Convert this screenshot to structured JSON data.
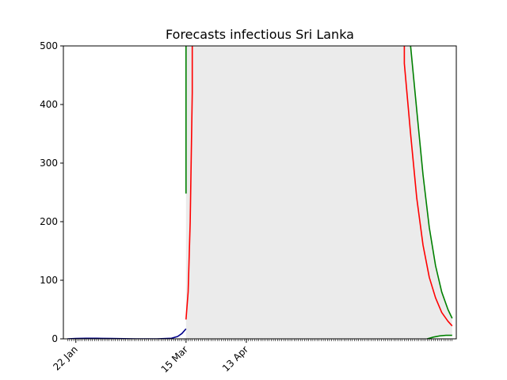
{
  "chart_data": {
    "type": "line",
    "title": "Forecasts infectious Sri Lanka",
    "xlabel": "",
    "ylabel": "",
    "x_axis": {
      "type": "date",
      "start": "2020-01-16",
      "end": "2020-07-23",
      "tick_labels": [
        {
          "date": "2020-01-22",
          "label": "22 Jan"
        },
        {
          "date": "2020-03-15",
          "label": "15 Mar"
        },
        {
          "date": "2020-04-13",
          "label": "13 Apr"
        }
      ],
      "minor_ticks": "daily"
    },
    "ylim": [
      0,
      500
    ],
    "y_ticks": [
      0,
      100,
      200,
      300,
      400,
      500
    ],
    "grid": false,
    "legend": "none",
    "series": [
      {
        "color": "#00008b",
        "style": "observed",
        "points": [
          [
            "2020-01-18",
            0
          ],
          [
            "2020-01-22",
            0.5
          ],
          [
            "2020-01-27",
            1
          ],
          [
            "2020-02-01",
            1
          ],
          [
            "2020-02-08",
            0.5
          ],
          [
            "2020-02-20",
            0
          ],
          [
            "2020-03-01",
            0
          ],
          [
            "2020-03-08",
            1
          ],
          [
            "2020-03-11",
            4
          ],
          [
            "2020-03-13",
            9
          ],
          [
            "2020-03-15",
            17
          ]
        ]
      },
      {
        "color": "#ff0000",
        "style": "forecast-central",
        "points": [
          [
            "2020-03-15",
            33
          ],
          [
            "2020-03-16",
            80
          ],
          [
            "2020-03-17",
            200
          ],
          [
            "2020-03-18",
            420
          ],
          [
            "2020-03-18",
            520
          ],
          [
            "2020-06-28",
            520
          ],
          [
            "2020-06-28",
            470
          ],
          [
            "2020-07-01",
            350
          ],
          [
            "2020-07-04",
            240
          ],
          [
            "2020-07-07",
            160
          ],
          [
            "2020-07-10",
            105
          ],
          [
            "2020-07-13",
            70
          ],
          [
            "2020-07-16",
            45
          ],
          [
            "2020-07-19",
            30
          ],
          [
            "2020-07-21",
            22
          ]
        ]
      },
      {
        "color": "#008000",
        "style": "forecast-upper",
        "segments": [
          [
            [
              "2020-03-15",
              248
            ],
            [
              "2020-03-15",
              520
            ]
          ],
          [
            [
              "2020-07-01",
              520
            ],
            [
              "2020-07-01",
              500
            ],
            [
              "2020-07-04",
              390
            ],
            [
              "2020-07-07",
              280
            ],
            [
              "2020-07-10",
              190
            ],
            [
              "2020-07-13",
              125
            ],
            [
              "2020-07-16",
              80
            ],
            [
              "2020-07-19",
              50
            ],
            [
              "2020-07-21",
              35
            ]
          ]
        ]
      },
      {
        "color": "#008000",
        "style": "forecast-lower",
        "points": [
          [
            "2020-07-09",
            0
          ],
          [
            "2020-07-12",
            3
          ],
          [
            "2020-07-15",
            5
          ],
          [
            "2020-07-18",
            6
          ],
          [
            "2020-07-21",
            6
          ]
        ]
      }
    ],
    "band": {
      "color": "#ebebeb",
      "upper": [
        [
          "2020-03-15",
          520
        ],
        [
          "2020-07-21",
          520
        ]
      ],
      "lower": [
        [
          "2020-03-15",
          0
        ],
        [
          "2020-07-21",
          0
        ]
      ],
      "upper_tail": [
        [
          "2020-07-01",
          520
        ],
        [
          "2020-07-01",
          500
        ],
        [
          "2020-07-04",
          390
        ],
        [
          "2020-07-07",
          280
        ],
        [
          "2020-07-10",
          190
        ],
        [
          "2020-07-13",
          125
        ],
        [
          "2020-07-16",
          80
        ],
        [
          "2020-07-19",
          50
        ],
        [
          "2020-07-21",
          35
        ]
      ],
      "lower_tail": [
        [
          "2020-07-09",
          0
        ],
        [
          "2020-07-12",
          3
        ],
        [
          "2020-07-15",
          5
        ],
        [
          "2020-07-18",
          6
        ],
        [
          "2020-07-21",
          6
        ]
      ]
    }
  }
}
